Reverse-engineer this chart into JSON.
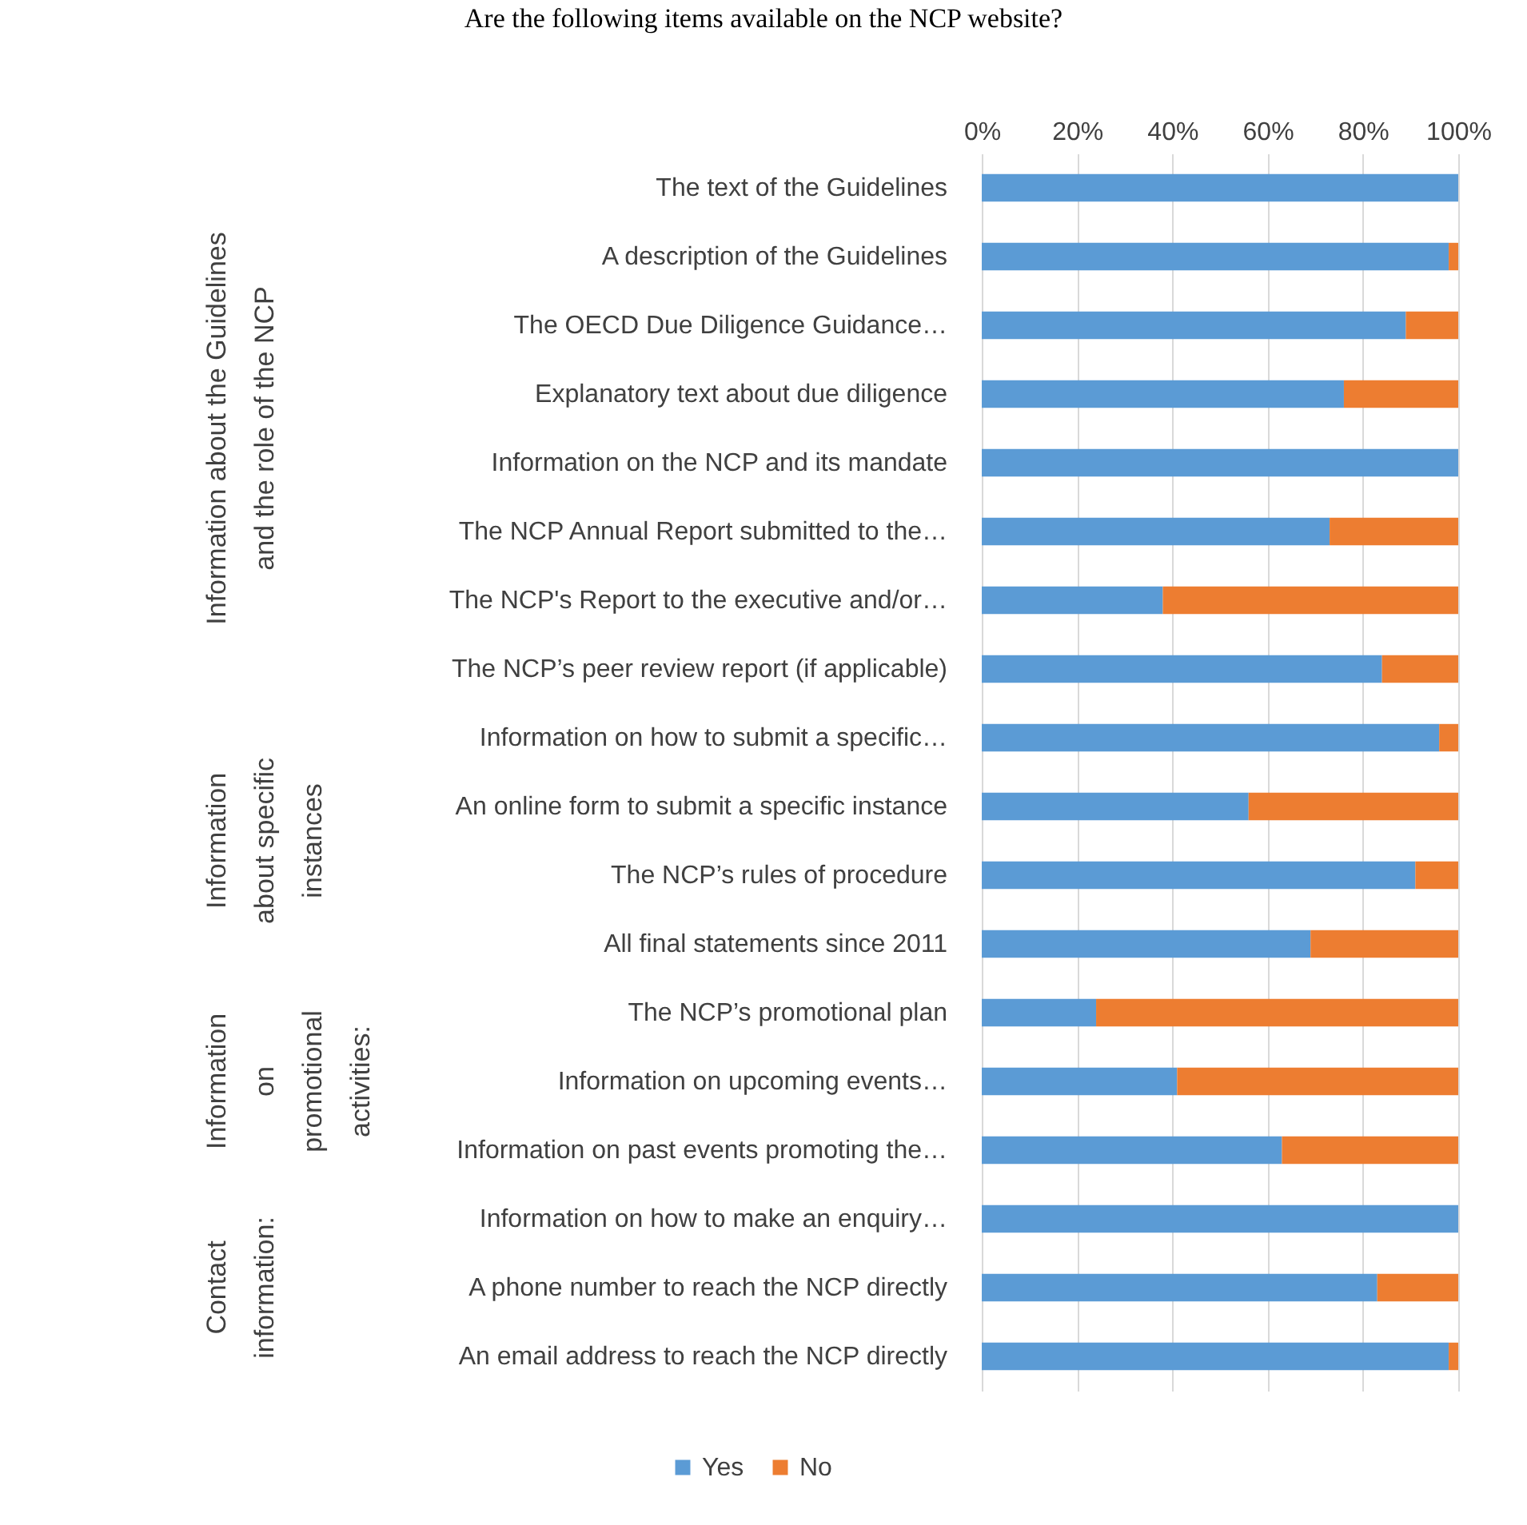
{
  "chart_data": {
    "type": "bar",
    "orientation": "horizontal",
    "stacked": true,
    "title": "Are the following items available on the NCP website?",
    "categories": [
      "The text of the Guidelines",
      "A description of the Guidelines",
      "The OECD Due Diligence Guidance…",
      "Explanatory text about due diligence",
      "Information on the NCP and its mandate",
      "The NCP Annual Report submitted to the…",
      "The NCP's Report to the executive and/or…",
      "The NCP’s peer review report (if applicable)",
      "Information on how to submit a specific…",
      "An online form to submit a specific instance",
      "The NCP’s rules of procedure",
      "All final statements since 2011",
      "The NCP’s promotional plan",
      "Information on upcoming events…",
      "Information on past events promoting the…",
      "Information on how to make an enquiry…",
      "A phone number to reach the NCP directly",
      "An email address to reach the NCP directly"
    ],
    "series": [
      {
        "name": "Yes",
        "color": "#5b9bd5",
        "values": [
          100,
          98,
          89,
          76,
          100,
          73,
          38,
          84,
          96,
          56,
          91,
          69,
          24,
          41,
          63,
          100,
          83,
          98
        ]
      },
      {
        "name": "No",
        "color": "#ed7d31",
        "values": [
          0,
          2,
          11,
          24,
          0,
          27,
          62,
          16,
          4,
          44,
          9,
          31,
          76,
          59,
          37,
          0,
          17,
          2
        ]
      }
    ],
    "xlim": [
      0,
      100
    ],
    "xticks": [
      {
        "value": 0,
        "label": "0%"
      },
      {
        "value": 20,
        "label": "20%"
      },
      {
        "value": 40,
        "label": "40%"
      },
      {
        "value": 60,
        "label": "60%"
      },
      {
        "value": 80,
        "label": "80%"
      },
      {
        "value": 100,
        "label": "100%"
      }
    ],
    "grid": "x",
    "legend": "bottom",
    "annotations": [
      "Information about the Guidelines\nand the role of the NCP",
      "Information\nabout specific\ninstances",
      "Information\non\npromotional\nactivities:",
      "Contact\ninformation:"
    ]
  }
}
